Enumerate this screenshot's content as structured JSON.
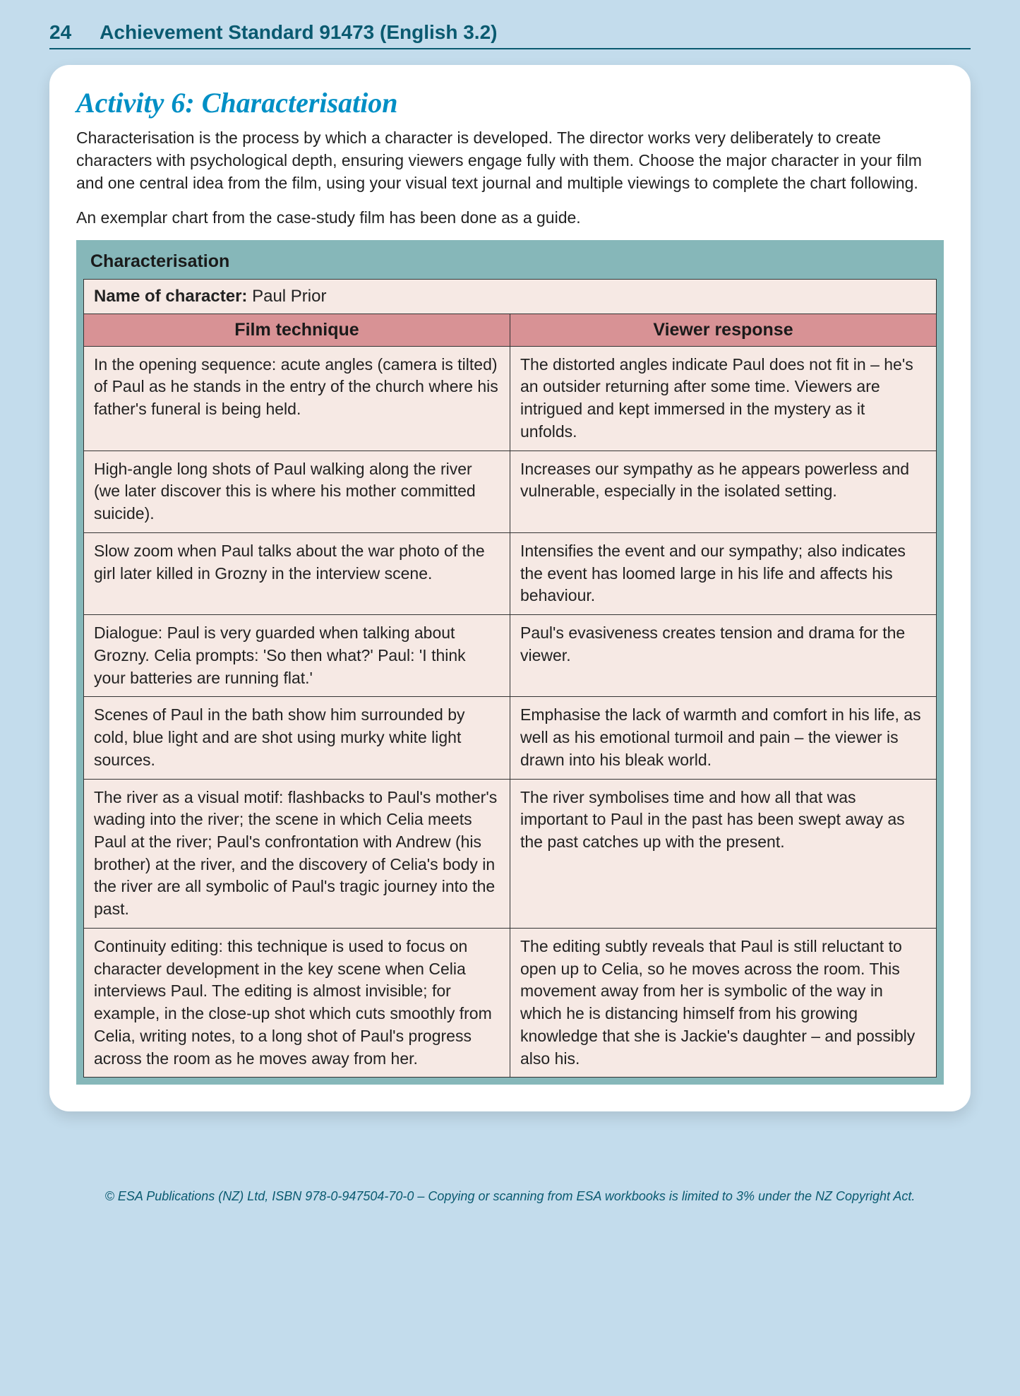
{
  "header": {
    "pageNumber": "24",
    "title": "Achievement Standard 91473 (English 3.2)"
  },
  "activity": {
    "title": "Activity 6: Characterisation",
    "intro1": "Characterisation is the process by which a character is developed. The director works very deliberately to create characters with psychological depth, ensuring viewers engage fully with them. Choose the major character in your film and one central idea from the film, using your visual text journal and multiple viewings to complete the chart following.",
    "intro2": "An exemplar chart from the case-study film has been done as a guide."
  },
  "table": {
    "title": "Characterisation",
    "characterLabel": "Name of character: ",
    "characterName": "Paul Prior",
    "col1": "Film technique",
    "col2": "Viewer response",
    "rows": [
      {
        "technique": "In the opening sequence: acute angles (camera is tilted) of Paul as he stands in the entry of the church where his father's funeral is being held.",
        "response": "The distorted angles indicate Paul does not fit in – he's an outsider returning after some time. Viewers are intrigued and kept immersed in the mystery as it unfolds."
      },
      {
        "technique": "High-angle long shots of Paul walking along the river (we later discover this is where his mother committed suicide).",
        "response": "Increases our sympathy as he appears powerless and vulnerable, especially in the isolated setting."
      },
      {
        "technique": "Slow zoom when Paul talks about the war photo of the girl later killed in Grozny in the interview scene.",
        "response": "Intensifies the event and our sympathy; also indicates the event has loomed large in his life and affects his behaviour."
      },
      {
        "technique": "Dialogue: Paul is very guarded when talking about Grozny. Celia prompts: 'So then what?' Paul: 'I think your batteries are running flat.'",
        "response": "Paul's evasiveness creates tension and drama for the viewer."
      },
      {
        "technique": "Scenes of Paul in the bath show him surrounded by cold, blue light and are shot using murky white light sources.",
        "response": "Emphasise the lack of warmth and comfort in his life, as well as his emotional turmoil and pain – the viewer is drawn into his bleak world."
      },
      {
        "technique": "The river as a visual motif: flashbacks to Paul's mother's wading into the river; the scene in which Celia meets Paul at the river; Paul's confrontation with Andrew (his brother) at the river, and the discovery of Celia's body in the river are all symbolic of Paul's tragic journey into the past.",
        "response": "The river symbolises time and how all that was important to Paul in the past has been swept away as the past catches up with the present."
      },
      {
        "technique": "Continuity editing: this technique is used to focus on character development in the key scene when Celia interviews Paul. The editing is almost invisible; for example, in the close-up shot which cuts smoothly from Celia, writing notes, to a long shot of Paul's progress across the room as he moves away from her.",
        "response": "The editing subtly reveals that Paul is still reluctant to open up to Celia, so he moves across the room. This movement away from her is symbolic of the way in which he is distancing himself from his growing knowledge that she is Jackie's daughter – and possibly also his."
      }
    ]
  },
  "footer": "© ESA Publications (NZ) Ltd, ISBN 978-0-947504-70-0 – Copying or scanning from ESA workbooks is limited to 3% under the NZ Copyright Act.",
  "colors": {
    "pageBg": "#c3dcec",
    "cardBg": "#ffffff",
    "accent": "#0a5a70",
    "activityTitle": "#008fc5",
    "tableWrapBg": "#86b7b9",
    "headerRowBg": "#d89295",
    "bodyRowBg": "#f6e9e4",
    "border": "#333333"
  }
}
